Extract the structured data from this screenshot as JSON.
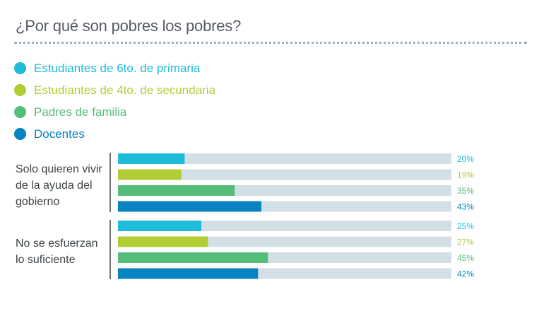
{
  "title": "¿Por qué son pobres los pobres?",
  "colors": {
    "track": "#d3dfe6",
    "title": "#555c63",
    "rule": "#9fb0bd"
  },
  "chart_data": {
    "type": "bar",
    "orientation": "horizontal",
    "categories": [
      "Solo quieren vivir de la ayuda del gobierno",
      "No se esfuerzan lo suficiente"
    ],
    "xlim": [
      0,
      100
    ],
    "series": [
      {
        "name": "Estudiantes de 6to. de primaria",
        "color": "#1ebcd8",
        "values": [
          20,
          25
        ],
        "labels": [
          "20%",
          "25%"
        ]
      },
      {
        "name": "Estudiantes de 4to. de secundaria",
        "color": "#b0cd36",
        "values": [
          19,
          27
        ],
        "labels": [
          "19%",
          "27%"
        ]
      },
      {
        "name": "Padres de familia",
        "color": "#55bd7a",
        "values": [
          35,
          45
        ],
        "labels": [
          "35%",
          "45%"
        ]
      },
      {
        "name": "Docentes",
        "color": "#0882c2",
        "values": [
          43,
          42
        ],
        "labels": [
          "43%",
          "42%"
        ]
      }
    ],
    "legend_position": "top-left"
  }
}
